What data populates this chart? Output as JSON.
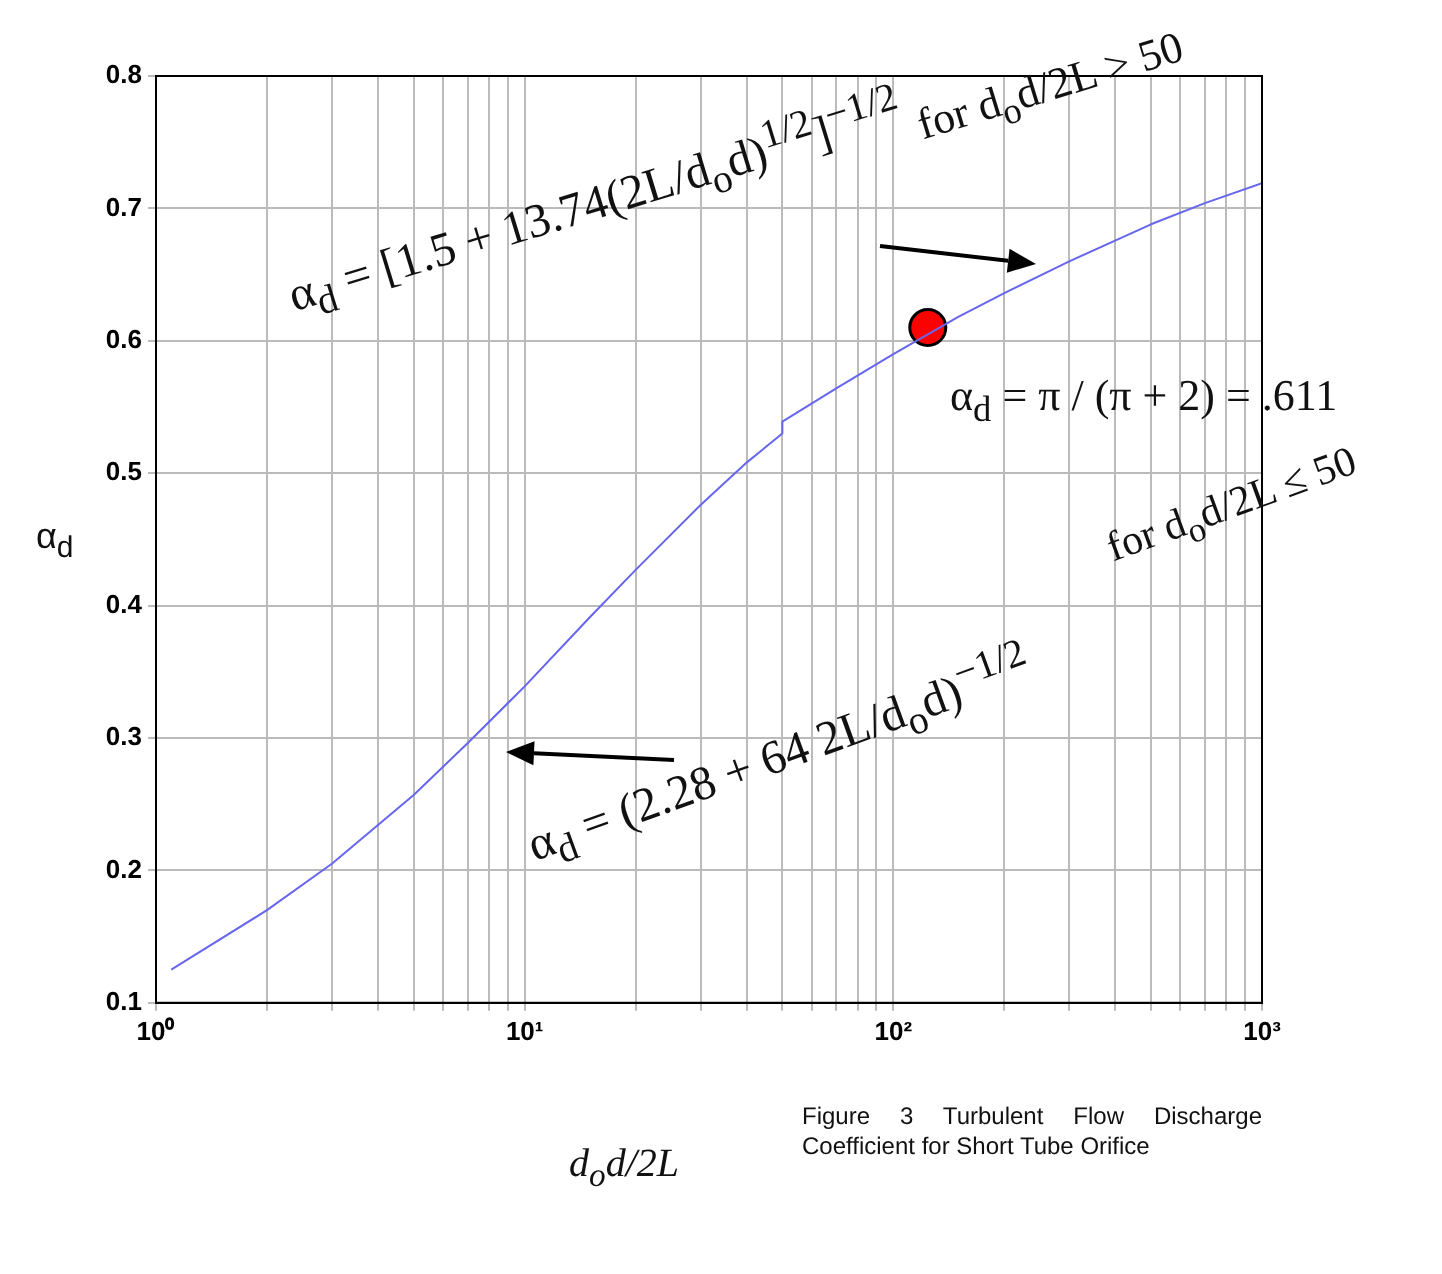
{
  "chart_data": {
    "type": "line",
    "xlabel": "d$_{o}$d/2L",
    "ylabel": "α$_{d}$",
    "series": [
      {
        "type": "line",
        "color": "#6666ee",
        "marker": "none",
        "x": [
          1.1,
          2,
          3,
          5,
          7,
          10,
          15,
          20,
          30,
          40,
          50,
          50,
          70,
          100,
          150,
          200,
          300,
          500,
          700,
          1000
        ],
        "values": [
          0.125,
          0.17,
          0.205,
          0.257,
          0.296,
          0.339,
          0.391,
          0.427,
          0.476,
          0.508,
          0.53,
          0.539,
          0.564,
          0.59,
          0.618,
          0.636,
          0.66,
          0.688,
          0.704,
          0.719
        ]
      },
      {
        "type": "scatter",
        "color": "#ff0000",
        "marker": "circle",
        "x": [
          124
        ],
        "values": [
          0.61
        ]
      }
    ],
    "xlim": [
      1,
      1000
    ],
    "ylim": [
      0.1,
      0.8
    ],
    "xticks": [
      {
        "value": 1,
        "label": "10⁰"
      },
      {
        "value": 2,
        "label": null
      },
      {
        "value": 3,
        "label": null
      },
      {
        "value": 4,
        "label": null
      },
      {
        "value": 5,
        "label": null
      },
      {
        "value": 6,
        "label": null
      },
      {
        "value": 7,
        "label": null
      },
      {
        "value": 8,
        "label": null
      },
      {
        "value": 9,
        "label": null
      },
      {
        "value": 10,
        "label": "10¹"
      },
      {
        "value": 20,
        "label": null
      },
      {
        "value": 30,
        "label": null
      },
      {
        "value": 40,
        "label": null
      },
      {
        "value": 50,
        "label": null
      },
      {
        "value": 60,
        "label": null
      },
      {
        "value": 70,
        "label": null
      },
      {
        "value": 80,
        "label": null
      },
      {
        "value": 90,
        "label": null
      },
      {
        "value": 100,
        "label": "10²"
      },
      {
        "value": 200,
        "label": null
      },
      {
        "value": 300,
        "label": null
      },
      {
        "value": 400,
        "label": null
      },
      {
        "value": 500,
        "label": null
      },
      {
        "value": 600,
        "label": null
      },
      {
        "value": 700,
        "label": null
      },
      {
        "value": 800,
        "label": null
      },
      {
        "value": 900,
        "label": null
      },
      {
        "value": 1000,
        "label": "10³"
      }
    ],
    "yticks": [
      0.1,
      0.2,
      0.3,
      0.4,
      0.5,
      0.6,
      0.7,
      0.8
    ],
    "log": "x",
    "grid": true,
    "legend": false,
    "line_style": "solid",
    "annotations": [
      "α$_{d}$ = [1.5 + 13.74(2L/d$_{o}$d)$^{1/2}$]$^{−1/2}$",
      "for d$_{o}$d/2L > 50",
      "α$_{d}$ = π / (π + 2) = .611",
      "α$_{d}$ = (2.28 + 64 2L/d$_{o}$d)$^{−1/2}$",
      "for d$_{o}$d/2L ≤ 50",
      "Figure 3 Turbulent Flow Discharge Coefficient for Short Tube Orifice"
    ]
  }
}
